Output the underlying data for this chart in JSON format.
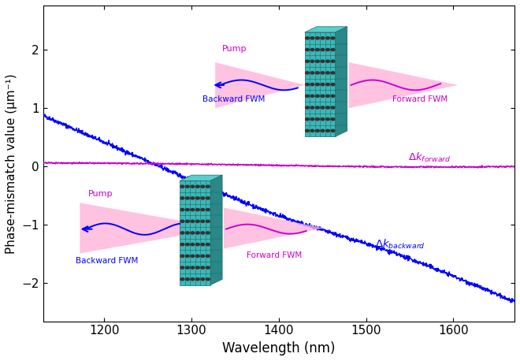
{
  "xlabel": "Wavelength (nm)",
  "ylabel": "Phase-mismatch value (μm⁻¹)",
  "xlim": [
    1130,
    1670
  ],
  "ylim": [
    -2.65,
    2.75
  ],
  "xticks": [
    1200,
    1300,
    1400,
    1500,
    1600
  ],
  "yticks": [
    -2,
    -1,
    0,
    1,
    2
  ],
  "blue_color": "#0000FF",
  "magenta_color": "#CC00CC",
  "arrow_color": "#FFB3D9",
  "slab_color_front": "#3CB8B8",
  "slab_color_side": "#2A8888",
  "slab_color_top": "#5ACCCC",
  "grid_color": "#1A6666",
  "dot_color": "#333333"
}
